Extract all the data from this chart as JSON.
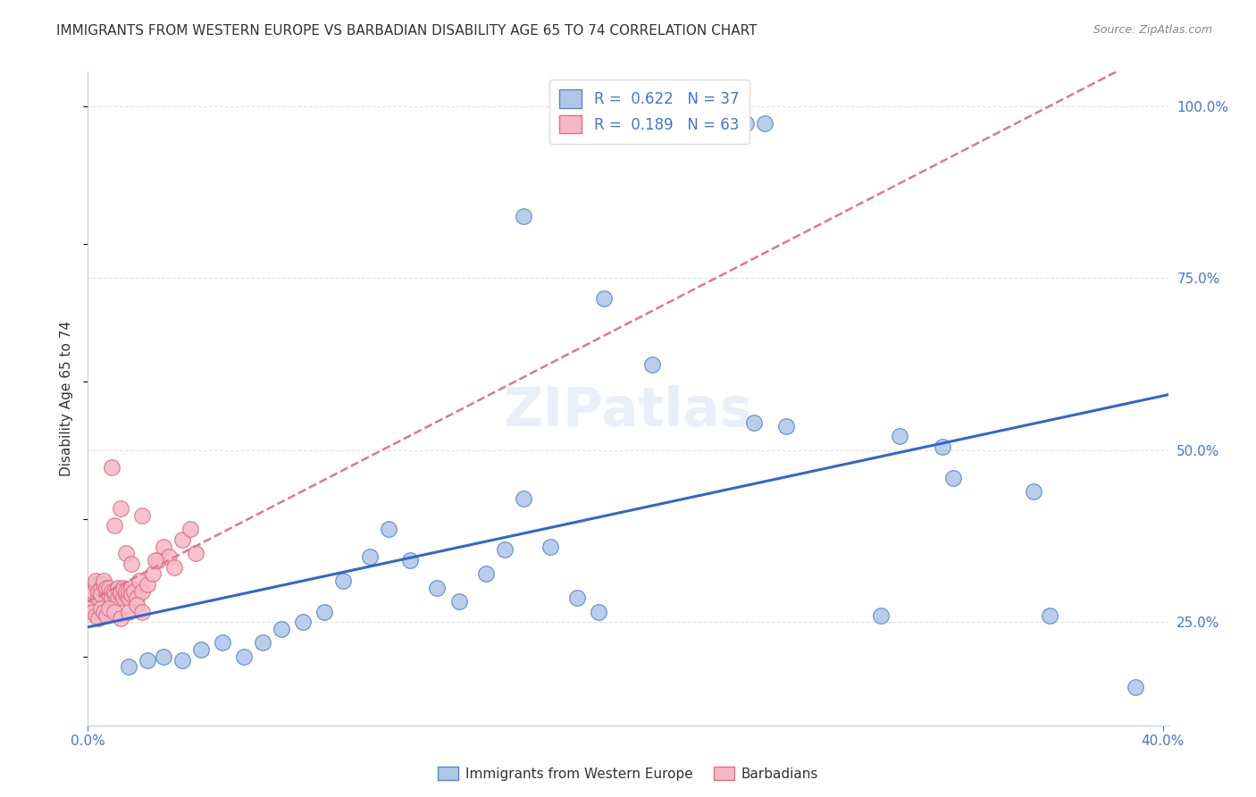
{
  "title": "IMMIGRANTS FROM WESTERN EUROPE VS BARBADIAN DISABILITY AGE 65 TO 74 CORRELATION CHART",
  "source": "Source: ZipAtlas.com",
  "ylabel": "Disability Age 65 to 74",
  "right_yticks": [
    "25.0%",
    "50.0%",
    "75.0%",
    "100.0%"
  ],
  "right_ytick_vals": [
    0.25,
    0.5,
    0.75,
    1.0
  ],
  "legend_blue_R": "0.622",
  "legend_blue_N": "37",
  "legend_pink_R": "0.189",
  "legend_pink_N": "63",
  "legend_label_blue": "Immigrants from Western Europe",
  "legend_label_pink": "Barbadians",
  "blue_color": "#aec6e8",
  "blue_edge_color": "#5588cc",
  "blue_line_color": "#3366cc",
  "pink_color": "#f4b8c8",
  "pink_edge_color": "#e07080",
  "pink_line_color": "#e07888",
  "watermark": "ZIPatlas",
  "blue_scatter_x": [
    0.245,
    0.252,
    0.162,
    0.192,
    0.21,
    0.248,
    0.26,
    0.302,
    0.318,
    0.322,
    0.015,
    0.022,
    0.028,
    0.035,
    0.042,
    0.05,
    0.058,
    0.065,
    0.072,
    0.08,
    0.088,
    0.095,
    0.105,
    0.112,
    0.12,
    0.13,
    0.138,
    0.148,
    0.155,
    0.162,
    0.172,
    0.182,
    0.19,
    0.352,
    0.358,
    0.39,
    0.295
  ],
  "blue_scatter_y": [
    0.975,
    0.975,
    0.84,
    0.72,
    0.625,
    0.54,
    0.535,
    0.52,
    0.505,
    0.46,
    0.185,
    0.195,
    0.2,
    0.195,
    0.21,
    0.22,
    0.2,
    0.22,
    0.24,
    0.25,
    0.265,
    0.31,
    0.345,
    0.385,
    0.34,
    0.3,
    0.28,
    0.32,
    0.355,
    0.43,
    0.36,
    0.285,
    0.265,
    0.44,
    0.26,
    0.155,
    0.26
  ],
  "pink_scatter_x": [
    0.001,
    0.002,
    0.002,
    0.003,
    0.003,
    0.004,
    0.004,
    0.005,
    0.005,
    0.006,
    0.006,
    0.007,
    0.007,
    0.008,
    0.008,
    0.009,
    0.009,
    0.01,
    0.01,
    0.011,
    0.011,
    0.012,
    0.012,
    0.013,
    0.013,
    0.014,
    0.014,
    0.015,
    0.015,
    0.016,
    0.016,
    0.017,
    0.018,
    0.019,
    0.02,
    0.022,
    0.024,
    0.026,
    0.028,
    0.03,
    0.032,
    0.035,
    0.038,
    0.04,
    0.002,
    0.003,
    0.004,
    0.005,
    0.006,
    0.007,
    0.008,
    0.01,
    0.012,
    0.015,
    0.018,
    0.02,
    0.009,
    0.01,
    0.012,
    0.014,
    0.016,
    0.02,
    0.025
  ],
  "pink_scatter_y": [
    0.285,
    0.29,
    0.295,
    0.305,
    0.31,
    0.285,
    0.295,
    0.3,
    0.29,
    0.305,
    0.31,
    0.295,
    0.3,
    0.29,
    0.3,
    0.295,
    0.285,
    0.29,
    0.295,
    0.285,
    0.3,
    0.29,
    0.295,
    0.285,
    0.3,
    0.29,
    0.295,
    0.285,
    0.295,
    0.3,
    0.29,
    0.295,
    0.285,
    0.31,
    0.295,
    0.305,
    0.32,
    0.34,
    0.36,
    0.345,
    0.33,
    0.37,
    0.385,
    0.35,
    0.265,
    0.26,
    0.255,
    0.27,
    0.265,
    0.26,
    0.27,
    0.265,
    0.255,
    0.265,
    0.275,
    0.265,
    0.475,
    0.39,
    0.415,
    0.35,
    0.335,
    0.405,
    0.34
  ],
  "xlim": [
    0.0,
    0.402
  ],
  "ylim": [
    0.1,
    1.05
  ],
  "grid_color": "#e0e0e0",
  "background_color": "#ffffff",
  "title_fontsize": 11,
  "axis_label_color": "#4477cc",
  "text_color": "#333333",
  "source_color": "#888888"
}
